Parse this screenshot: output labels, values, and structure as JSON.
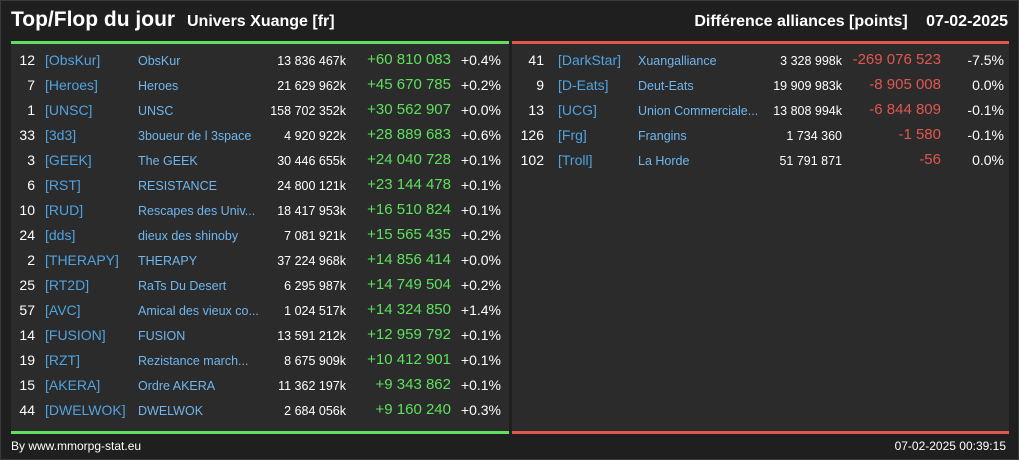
{
  "header": {
    "title": "Top/Flop du jour",
    "universe": "Univers Xuange [fr]",
    "subtitle": "Différence alliances [points]",
    "date": "07-02-2025"
  },
  "colors": {
    "positive": "#5ee05e",
    "negative": "#e0574f",
    "tag": "#4fa3e0"
  },
  "top": [
    {
      "rank": "12",
      "tag": "[ObsKur]",
      "name": "ObsKur",
      "points": "13 836 467k",
      "diff": "+60 810 083",
      "pct": "+0.4%"
    },
    {
      "rank": "7",
      "tag": "[Heroes]",
      "name": "Heroes",
      "points": "21 629 962k",
      "diff": "+45 670 785",
      "pct": "+0.2%"
    },
    {
      "rank": "1",
      "tag": "[UNSC]",
      "name": "UNSC",
      "points": "158 702 352k",
      "diff": "+30 562 907",
      "pct": "+0.0%"
    },
    {
      "rank": "33",
      "tag": "[3d3]",
      "name": "3boueur de l 3space",
      "points": "4 920 922k",
      "diff": "+28 889 683",
      "pct": "+0.6%"
    },
    {
      "rank": "3",
      "tag": "[GEEK]",
      "name": "The GEEK",
      "points": "30 446 655k",
      "diff": "+24 040 728",
      "pct": "+0.1%"
    },
    {
      "rank": "6",
      "tag": "[RST]",
      "name": "RESISTANCE",
      "points": "24 800 121k",
      "diff": "+23 144 478",
      "pct": "+0.1%"
    },
    {
      "rank": "10",
      "tag": "[RUD]",
      "name": "Rescapes des Univ...",
      "points": "18 417 953k",
      "diff": "+16 510 824",
      "pct": "+0.1%"
    },
    {
      "rank": "24",
      "tag": "[dds]",
      "name": "dieux des shinoby",
      "points": "7 081 921k",
      "diff": "+15 565 435",
      "pct": "+0.2%"
    },
    {
      "rank": "2",
      "tag": "[THERAPY]",
      "name": "THERAPY",
      "points": "37 224 968k",
      "diff": "+14 856 414",
      "pct": "+0.0%"
    },
    {
      "rank": "25",
      "tag": "[RT2D]",
      "name": "RaTs Du Desert",
      "points": "6 295 987k",
      "diff": "+14 749 504",
      "pct": "+0.2%"
    },
    {
      "rank": "57",
      "tag": "[AVC]",
      "name": "Amical des vieux co...",
      "points": "1 024 517k",
      "diff": "+14 324 850",
      "pct": "+1.4%"
    },
    {
      "rank": "14",
      "tag": "[FUSION]",
      "name": "FUSION",
      "points": "13 591 212k",
      "diff": "+12 959 792",
      "pct": "+0.1%"
    },
    {
      "rank": "19",
      "tag": "[RZT]",
      "name": "Rezistance march...",
      "points": "8 675 909k",
      "diff": "+10 412 901",
      "pct": "+0.1%"
    },
    {
      "rank": "15",
      "tag": "[AKERA]",
      "name": "Ordre AKERA",
      "points": "11 362 197k",
      "diff": "+9 343 862",
      "pct": "+0.1%"
    },
    {
      "rank": "44",
      "tag": "[DWELWOK]",
      "name": "DWELWOK",
      "points": "2 684 056k",
      "diff": "+9 160 240",
      "pct": "+0.3%"
    }
  ],
  "flop": [
    {
      "rank": "41",
      "tag": "[DarkStar]",
      "name": "Xuangalliance",
      "points": "3 328 998k",
      "diff": "-269 076 523",
      "pct": "-7.5%"
    },
    {
      "rank": "9",
      "tag": "[D-Eats]",
      "name": "Deut-Eats",
      "points": "19 909 983k",
      "diff": "-8 905 008",
      "pct": "0.0%"
    },
    {
      "rank": "13",
      "tag": "[UCG]",
      "name": "Union Commerciale...",
      "points": "13 808 994k",
      "diff": "-6 844 809",
      "pct": "-0.1%"
    },
    {
      "rank": "126",
      "tag": "[Frg]",
      "name": "Frangins",
      "points": "1 734 360",
      "diff": "-1 580",
      "pct": "-0.1%"
    },
    {
      "rank": "102",
      "tag": "[Troll]",
      "name": "La Horde",
      "points": "51 791 871",
      "diff": "-56",
      "pct": "0.0%"
    }
  ],
  "footer": {
    "source": "By www.mmorpg-stat.eu",
    "timestamp": "07-02-2025 00:39:15"
  }
}
